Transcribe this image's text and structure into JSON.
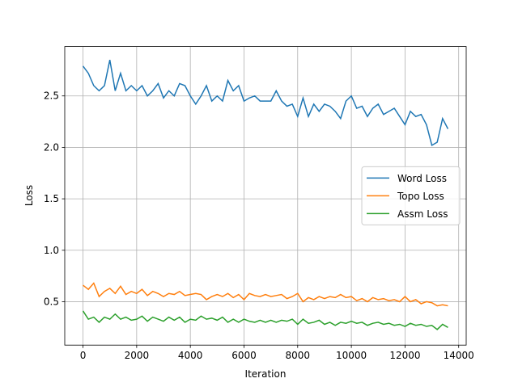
{
  "chart_data": {
    "type": "line",
    "x_label": "Iteration",
    "y_label": "Loss",
    "x": [
      0,
      200,
      400,
      600,
      800,
      1000,
      1200,
      1400,
      1600,
      1800,
      2000,
      2200,
      2400,
      2600,
      2800,
      3000,
      3200,
      3400,
      3600,
      3800,
      4000,
      4200,
      4400,
      4600,
      4800,
      5000,
      5200,
      5400,
      5600,
      5800,
      6000,
      6200,
      6400,
      6600,
      6800,
      7000,
      7200,
      7400,
      7600,
      7800,
      8000,
      8200,
      8400,
      8600,
      8800,
      9000,
      9200,
      9400,
      9600,
      9800,
      10000,
      10200,
      10400,
      10600,
      10800,
      11000,
      11200,
      11400,
      11600,
      11800,
      12000,
      12200,
      12400,
      12600,
      12800,
      13000,
      13200,
      13400,
      13600
    ],
    "series": [
      {
        "name": "Word Loss",
        "color": "#1f77b4",
        "values": [
          2.79,
          2.72,
          2.6,
          2.55,
          2.6,
          2.85,
          2.55,
          2.72,
          2.55,
          2.6,
          2.55,
          2.6,
          2.5,
          2.55,
          2.62,
          2.48,
          2.55,
          2.5,
          2.62,
          2.6,
          2.5,
          2.42,
          2.5,
          2.6,
          2.45,
          2.5,
          2.45,
          2.65,
          2.55,
          2.6,
          2.45,
          2.48,
          2.5,
          2.45,
          2.45,
          2.45,
          2.55,
          2.45,
          2.4,
          2.42,
          2.3,
          2.48,
          2.3,
          2.42,
          2.35,
          2.42,
          2.4,
          2.35,
          2.28,
          2.45,
          2.5,
          2.38,
          2.4,
          2.3,
          2.38,
          2.42,
          2.32,
          2.35,
          2.38,
          2.3,
          2.22,
          2.35,
          2.3,
          2.32,
          2.22,
          2.02,
          2.05,
          2.28,
          2.18
        ]
      },
      {
        "name": "Topo Loss",
        "color": "#ff7f0e",
        "values": [
          0.66,
          0.62,
          0.68,
          0.55,
          0.6,
          0.63,
          0.58,
          0.65,
          0.57,
          0.6,
          0.58,
          0.62,
          0.56,
          0.6,
          0.58,
          0.55,
          0.58,
          0.57,
          0.6,
          0.56,
          0.57,
          0.58,
          0.57,
          0.52,
          0.55,
          0.57,
          0.55,
          0.58,
          0.54,
          0.57,
          0.52,
          0.58,
          0.56,
          0.55,
          0.57,
          0.55,
          0.56,
          0.57,
          0.53,
          0.55,
          0.58,
          0.5,
          0.54,
          0.52,
          0.55,
          0.53,
          0.55,
          0.54,
          0.57,
          0.54,
          0.55,
          0.51,
          0.53,
          0.5,
          0.54,
          0.52,
          0.53,
          0.51,
          0.52,
          0.5,
          0.55,
          0.5,
          0.52,
          0.48,
          0.5,
          0.49,
          0.46,
          0.47,
          0.46
        ]
      },
      {
        "name": "Assm Loss",
        "color": "#2ca02c",
        "values": [
          0.41,
          0.33,
          0.35,
          0.3,
          0.35,
          0.33,
          0.38,
          0.33,
          0.35,
          0.32,
          0.33,
          0.36,
          0.31,
          0.35,
          0.33,
          0.31,
          0.35,
          0.32,
          0.35,
          0.3,
          0.33,
          0.32,
          0.36,
          0.33,
          0.34,
          0.32,
          0.35,
          0.3,
          0.33,
          0.3,
          0.33,
          0.31,
          0.3,
          0.32,
          0.3,
          0.32,
          0.3,
          0.32,
          0.31,
          0.33,
          0.28,
          0.33,
          0.29,
          0.3,
          0.32,
          0.28,
          0.3,
          0.27,
          0.3,
          0.29,
          0.31,
          0.29,
          0.3,
          0.27,
          0.29,
          0.3,
          0.28,
          0.29,
          0.27,
          0.28,
          0.26,
          0.29,
          0.27,
          0.28,
          0.26,
          0.27,
          0.23,
          0.28,
          0.25
        ]
      }
    ],
    "xlim": [
      -680,
      14280
    ],
    "ylim": [
      0.078,
      2.98
    ],
    "xticks": [
      0,
      2000,
      4000,
      6000,
      8000,
      10000,
      12000,
      14000
    ],
    "yticks": [
      0.5,
      {
        "value": 1.0,
        "label": "1.0"
      },
      1.5,
      {
        "value": 2.0,
        "label": "2.0"
      },
      2.5
    ],
    "grid": true,
    "legend": "center right"
  }
}
